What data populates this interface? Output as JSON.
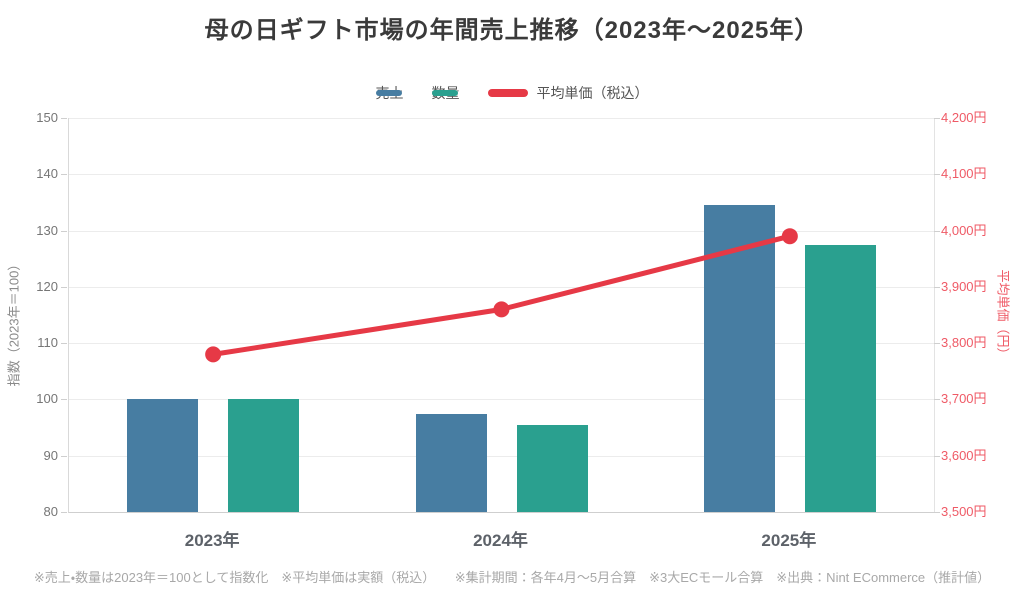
{
  "title": "母の日ギフト市場の年間売上推移（2023年～2025年）",
  "footer": {
    "text": "※売上・数量は2023年＝100として指数化　※平均単価は実額（税込）　　※集計期間：各年4月～5月合算　※3大ECモール合算　※出典：Nint ECommerce（推計値）"
  },
  "chart_data": {
    "type": "bar+line combo",
    "categories": [
      "2023年",
      "2024年",
      "2025年"
    ],
    "series": [
      {
        "key": "sales",
        "name": "売上",
        "type": "bar",
        "axis": "left",
        "color": "#477da2",
        "values": [
          100,
          97.5,
          134.5
        ]
      },
      {
        "key": "quantity",
        "name": "数量",
        "type": "bar",
        "axis": "left",
        "color": "#2aa08f",
        "values": [
          100,
          95.5,
          127.5
        ]
      },
      {
        "key": "price",
        "name": "平均単価（税込）",
        "type": "line",
        "axis": "right",
        "color": "#e63946",
        "values": [
          3780,
          3860,
          3990
        ]
      }
    ],
    "left_axis": {
      "label": "指数（2023年＝100）",
      "min": 80,
      "max": 150,
      "step": 10,
      "tick_labels": [
        "80",
        "90",
        "100",
        "110",
        "120",
        "130",
        "140",
        "150"
      ]
    },
    "right_axis": {
      "label": "平均単価（円）",
      "min": 3500,
      "max": 4200,
      "step": 100,
      "tick_labels": [
        "3,500円",
        "3,600円",
        "3,700円",
        "3,800円",
        "3,900円",
        "4,000円",
        "4,100円",
        "4,200円"
      ],
      "tick_color": "#ef5a66"
    },
    "grid": true,
    "legend_position": "top"
  }
}
